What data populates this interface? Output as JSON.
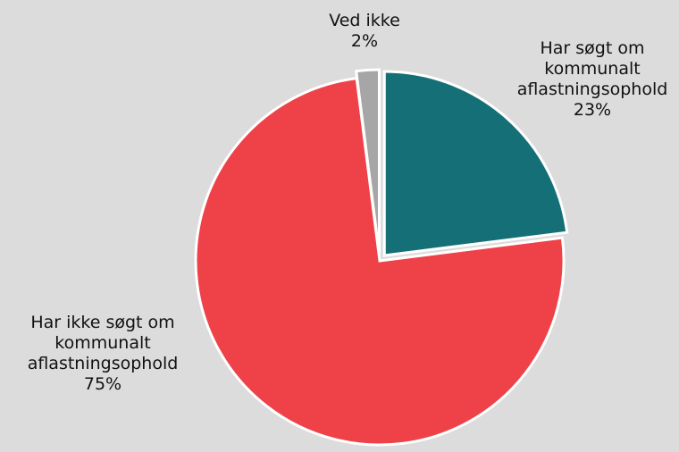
{
  "chart_data": {
    "type": "pie",
    "title": "",
    "slices": [
      {
        "label_lines": [
          "Har søgt om",
          "kommunalt",
          "aflastningsophold"
        ],
        "value": 23,
        "value_label": "23%",
        "color": "#156f77"
      },
      {
        "label_lines": [
          "Har ikke søgt om",
          "kommunalt",
          "aflastningsophold"
        ],
        "value": 75,
        "value_label": "75%",
        "color": "#ef4148"
      },
      {
        "label_lines": [
          "Ved ikke"
        ],
        "value": 2,
        "value_label": "2%",
        "color": "#a6a6a6"
      }
    ],
    "background": "#dcdcdc",
    "border_color": "#ffffff",
    "legend": "none"
  }
}
